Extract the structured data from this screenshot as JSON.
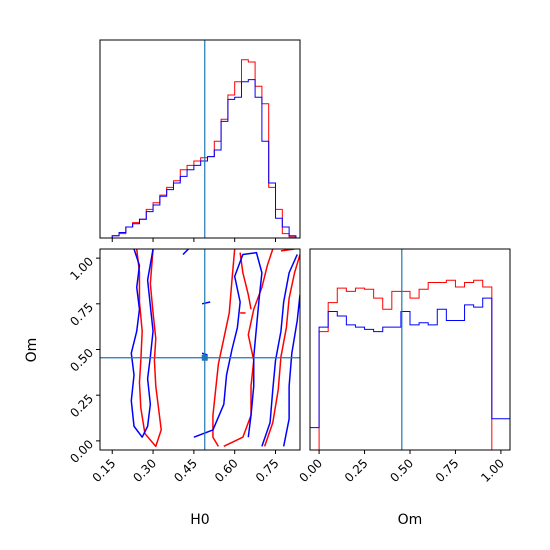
{
  "chart_data": {
    "type": "corner",
    "parameters": [
      "H0",
      "Om"
    ],
    "truths": {
      "H0": 0.49,
      "Om": 0.455
    },
    "colors": {
      "red": "#ff0000",
      "blue": "#0000ff",
      "truth": "#1f77b4"
    },
    "panels": {
      "h0_hist": {
        "type": "step-histogram",
        "xlim": [
          0.105,
          0.84
        ],
        "ylim": [
          0,
          180
        ],
        "x_edges": [
          0.15,
          0.175,
          0.2,
          0.225,
          0.25,
          0.275,
          0.3,
          0.325,
          0.35,
          0.375,
          0.4,
          0.425,
          0.45,
          0.475,
          0.5,
          0.525,
          0.55,
          0.575,
          0.6,
          0.625,
          0.65,
          0.675,
          0.7,
          0.725,
          0.75,
          0.775,
          0.8,
          0.825,
          0.85
        ],
        "series": [
          {
            "color": "red",
            "values": [
              2,
              4,
              10,
              14,
              17,
              26,
              32,
              39,
              46,
              52,
              62,
              66,
              70,
              73,
              74,
              88,
              108,
              130,
              142,
              162,
              160,
              138,
              122,
              46,
              26,
              4,
              1,
              0
            ]
          },
          {
            "color": "blue",
            "values": [
              2,
              5,
              10,
              13,
              17,
              24,
              30,
              38,
              44,
              50,
              56,
              62,
              66,
              70,
              74,
              80,
              106,
              126,
              128,
              142,
              144,
              128,
              88,
              50,
              18,
              10,
              2,
              0
            ]
          }
        ]
      },
      "om_hist": {
        "type": "step-histogram",
        "xlim": [
          -0.05,
          1.05
        ],
        "ylim": [
          0,
          180
        ],
        "x_edges": [
          -0.05,
          0.0,
          0.05,
          0.1,
          0.15,
          0.2,
          0.25,
          0.3,
          0.35,
          0.4,
          0.45,
          0.5,
          0.55,
          0.6,
          0.65,
          0.7,
          0.75,
          0.8,
          0.85,
          0.9,
          0.95,
          1.0,
          1.05
        ],
        "series": [
          {
            "color": "red",
            "values": [
              0,
              106,
              132,
              145,
              142,
              145,
              144,
              136,
              126,
              142,
              142,
              136,
              144,
              150,
              150,
              152,
              146,
              150,
              152,
              146,
              0,
              0
            ]
          },
          {
            "color": "blue",
            "values": [
              20,
              110,
              124,
              120,
              112,
              110,
              108,
              106,
              110,
              110,
              124,
              112,
              114,
              112,
              126,
              116,
              116,
              130,
              128,
              136,
              28,
              28
            ]
          }
        ]
      },
      "joint": {
        "type": "contour",
        "xlim": [
          0.105,
          0.84
        ],
        "ylim": [
          -0.05,
          1.05
        ],
        "series": [
          {
            "color": "red",
            "contours": [
              [
                [
                  0.24,
                  1.05
                ],
                [
                  0.25,
                  0.92
                ],
                [
                  0.25,
                  0.76
                ],
                [
                  0.26,
                  0.6
                ],
                [
                  0.255,
                  0.44
                ],
                [
                  0.25,
                  0.32
                ],
                [
                  0.255,
                  0.18
                ],
                [
                  0.27,
                  0.04
                ],
                [
                  0.31,
                  -0.03
                ],
                [
                  0.33,
                  0.06
                ],
                [
                  0.32,
                  0.18
                ],
                [
                  0.31,
                  0.3
                ],
                [
                  0.305,
                  0.44
                ],
                [
                  0.31,
                  0.56
                ],
                [
                  0.3,
                  0.7
                ],
                [
                  0.29,
                  0.86
                ],
                [
                  0.3,
                  1.05
                ]
              ],
              [
                [
                  0.56,
                  -0.03
                ],
                [
                  0.63,
                  0.02
                ],
                [
                  0.66,
                  0.14
                ],
                [
                  0.66,
                  0.3
                ],
                [
                  0.67,
                  0.44
                ],
                [
                  0.65,
                  0.58
                ],
                [
                  0.67,
                  0.72
                ],
                [
                  0.7,
                  0.84
                ],
                [
                  0.72,
                  0.96
                ],
                [
                  0.74,
                  1.05
                ]
              ],
              [
                [
                  0.6,
                  1.05
                ],
                [
                  0.59,
                  0.88
                ],
                [
                  0.58,
                  0.7
                ],
                [
                  0.56,
                  0.56
                ],
                [
                  0.54,
                  0.42
                ],
                [
                  0.53,
                  0.28
                ],
                [
                  0.52,
                  0.14
                ],
                [
                  0.52,
                  0.02
                ],
                [
                  0.54,
                  -0.03
                ]
              ],
              [
                [
                  0.71,
                  -0.03
                ],
                [
                  0.74,
                  0.1
                ],
                [
                  0.76,
                  0.28
                ],
                [
                  0.77,
                  0.46
                ],
                [
                  0.79,
                  0.62
                ],
                [
                  0.8,
                  0.78
                ],
                [
                  0.82,
                  0.92
                ],
                [
                  0.84,
                  1.02
                ]
              ],
              [
                [
                  0.62,
                  1.03
                ],
                [
                  0.63,
                  0.92
                ],
                [
                  0.65,
                  0.8
                ],
                [
                  0.66,
                  0.72
                ]
              ],
              [
                [
                  0.62,
                  0.7
                ],
                [
                  0.64,
                  0.7
                ]
              ],
              [
                [
                  0.77,
                  1.04
                ],
                [
                  0.82,
                  1.05
                ]
              ]
            ]
          },
          {
            "color": "blue",
            "contours": [
              [
                [
                  0.23,
                  1.05
                ],
                [
                  0.25,
                  0.96
                ],
                [
                  0.24,
                  0.84
                ],
                [
                  0.25,
                  0.72
                ],
                [
                  0.24,
                  0.6
                ],
                [
                  0.22,
                  0.48
                ],
                [
                  0.23,
                  0.36
                ],
                [
                  0.22,
                  0.22
                ],
                [
                  0.23,
                  0.08
                ],
                [
                  0.26,
                  0.02
                ],
                [
                  0.28,
                  0.08
                ],
                [
                  0.29,
                  0.2
                ],
                [
                  0.28,
                  0.34
                ],
                [
                  0.29,
                  0.46
                ],
                [
                  0.3,
                  0.6
                ],
                [
                  0.29,
                  0.74
                ],
                [
                  0.28,
                  0.88
                ],
                [
                  0.3,
                  1.05
                ]
              ],
              [
                [
                  0.45,
                  0.02
                ],
                [
                  0.52,
                  0.06
                ],
                [
                  0.56,
                  0.2
                ],
                [
                  0.57,
                  0.36
                ],
                [
                  0.59,
                  0.5
                ],
                [
                  0.61,
                  0.62
                ],
                [
                  0.62,
                  0.76
                ],
                [
                  0.6,
                  0.9
                ],
                [
                  0.63,
                  1.02
                ],
                [
                  0.68,
                  1.03
                ],
                [
                  0.7,
                  0.92
                ],
                [
                  0.69,
                  0.78
                ],
                [
                  0.68,
                  0.62
                ],
                [
                  0.67,
                  0.46
                ],
                [
                  0.67,
                  0.3
                ],
                [
                  0.66,
                  0.14
                ],
                [
                  0.65,
                  0.02
                ]
              ],
              [
                [
                  0.7,
                  -0.03
                ],
                [
                  0.73,
                  0.1
                ],
                [
                  0.74,
                  0.28
                ],
                [
                  0.75,
                  0.44
                ],
                [
                  0.77,
                  0.6
                ],
                [
                  0.78,
                  0.76
                ],
                [
                  0.8,
                  0.92
                ],
                [
                  0.83,
                  1.02
                ]
              ],
              [
                [
                  0.78,
                  -0.03
                ],
                [
                  0.8,
                  0.12
                ],
                [
                  0.8,
                  0.3
                ],
                [
                  0.81,
                  0.48
                ],
                [
                  0.83,
                  0.66
                ],
                [
                  0.84,
                  0.8
                ]
              ],
              [
                [
                  0.48,
                  0.75
                ],
                [
                  0.51,
                  0.76
                ]
              ],
              [
                [
                  0.48,
                  0.48
                ],
                [
                  0.5,
                  0.47
                ]
              ],
              [
                [
                  0.41,
                  1.02
                ],
                [
                  0.43,
                  1.05
                ]
              ]
            ]
          }
        ]
      }
    },
    "axes": {
      "h0_ticks": [
        "0.15",
        "0.30",
        "0.45",
        "0.60",
        "0.75"
      ],
      "om_ticks": [
        "0.00",
        "0.25",
        "0.50",
        "0.75",
        "1.00"
      ],
      "xlabel_left": "H0",
      "xlabel_right": "Om",
      "ylabel_left": "Om"
    }
  }
}
